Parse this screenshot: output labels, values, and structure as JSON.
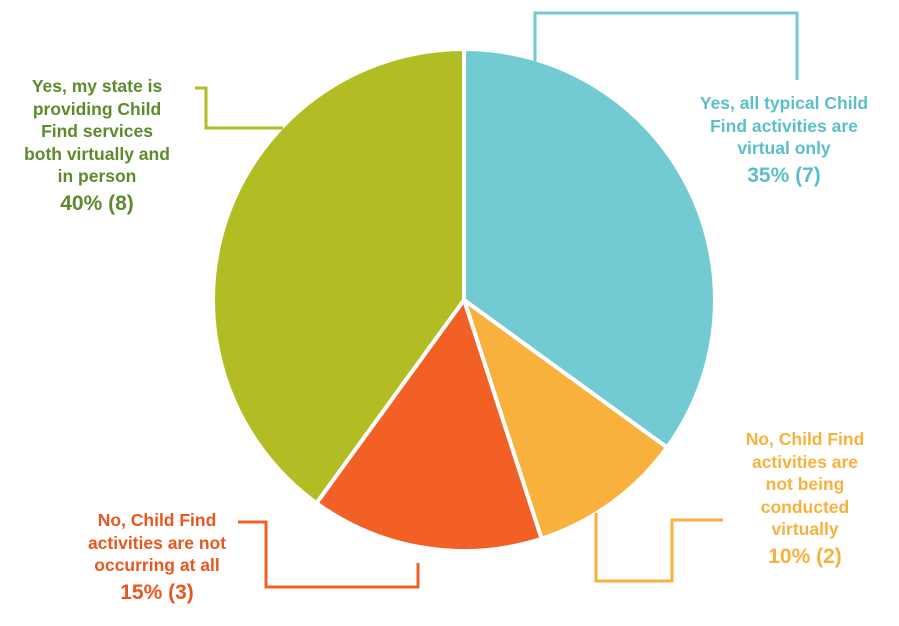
{
  "chart_data": {
    "type": "pie",
    "title": "",
    "slices": [
      {
        "label_lines": [
          "Yes, all typical Child",
          "Find activities are",
          "virtual only"
        ],
        "value": 35,
        "count": 7,
        "value_label": "35% (7)",
        "color": "#72cbd2",
        "text_color": "#5bbfc7"
      },
      {
        "label_lines": [
          "No, Child Find",
          "activities are",
          "not being",
          "conducted",
          "virtually"
        ],
        "value": 10,
        "count": 2,
        "value_label": "10% (2)",
        "color": "#f9b13e",
        "text_color": "#f9b13e"
      },
      {
        "label_lines": [
          "No, Child Find",
          "activities are not",
          "occurring at all"
        ],
        "value": 15,
        "count": 3,
        "value_label": "15% (3)",
        "color": "#f26026",
        "text_color": "#e8571e"
      },
      {
        "label_lines": [
          "Yes, my state is",
          "providing Child",
          "Find services",
          "both virtually and",
          "in person"
        ],
        "value": 40,
        "count": 8,
        "value_label": "40% (8)",
        "color": "#b1bd23",
        "text_color": "#5f8a2c"
      }
    ]
  }
}
